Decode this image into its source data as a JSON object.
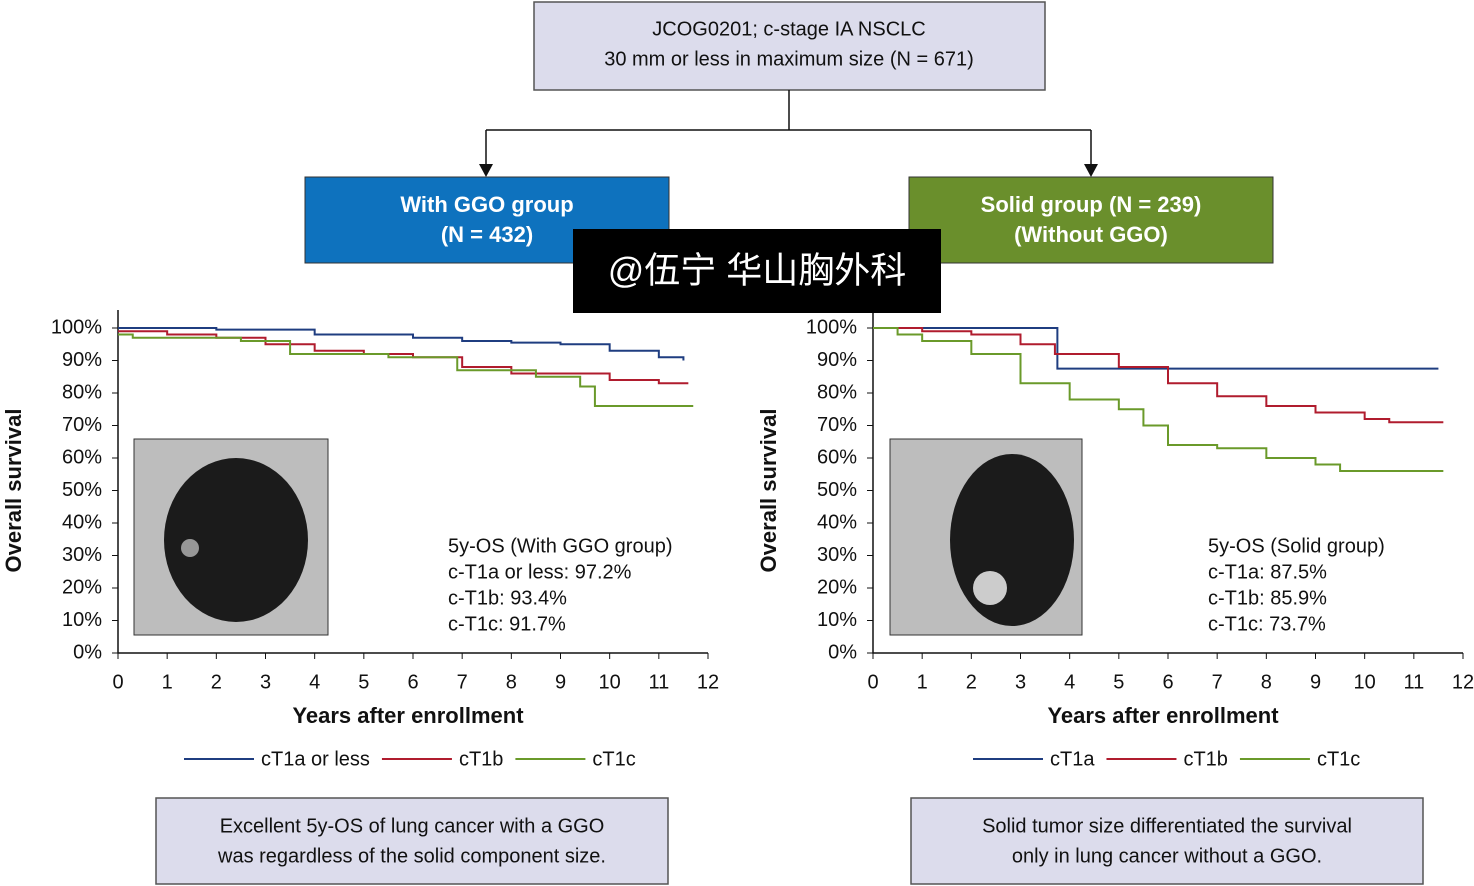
{
  "flow": {
    "top": [
      "JCOG0201; c-stage IA NSCLC",
      "30 mm or less in maximum size (N = 671)"
    ],
    "left_group": [
      "With GGO group",
      "(N = 432)"
    ],
    "right_group": [
      "Solid group (N = 239)",
      "(Without GGO)"
    ],
    "left_note": [
      "Excellent 5y-OS of lung cancer with a GGO",
      "was regardless of the solid component size."
    ],
    "right_note": [
      "Solid tumor size differentiated the survival",
      "only in lung cancer without a GGO."
    ],
    "watermark": "@伍宁 华山胸外科"
  },
  "chart_data": [
    {
      "type": "line",
      "step": true,
      "xlabel": "Years after enrollment",
      "ylabel": "Overall survival",
      "xlim": [
        0,
        12
      ],
      "xticks": [
        0,
        1,
        2,
        3,
        4,
        5,
        6,
        7,
        8,
        9,
        10,
        11,
        12
      ],
      "ylim": [
        0,
        100
      ],
      "yticks": [
        {
          "value": 0,
          "label": "0%"
        },
        {
          "value": 10,
          "label": "10%"
        },
        {
          "value": 20,
          "label": "20%"
        },
        {
          "value": 30,
          "label": "30%"
        },
        {
          "value": 40,
          "label": "40%"
        },
        {
          "value": 50,
          "label": "50%"
        },
        {
          "value": 60,
          "label": "60%"
        },
        {
          "value": 70,
          "label": "70%"
        },
        {
          "value": 80,
          "label": "80%"
        },
        {
          "value": 90,
          "label": "90%"
        },
        {
          "value": 100,
          "label": "100%"
        }
      ],
      "annotations": [
        "5y-OS (With GGO group)",
        "c-T1a or less: 97.2%",
        "c-T1b: 93.4%",
        "c-T1c: 91.7%"
      ],
      "series": [
        {
          "name": "cT1a or less",
          "color": "#1f3d80",
          "x": [
            0,
            2,
            4,
            6,
            7,
            8,
            9,
            10,
            11,
            11.5
          ],
          "values": [
            100,
            99.5,
            98,
            97,
            96,
            95.5,
            95,
            93,
            91,
            90
          ]
        },
        {
          "name": "cT1b",
          "color": "#b01c2e",
          "x": [
            0,
            1,
            2,
            3,
            4,
            5,
            6,
            7,
            8,
            9,
            10,
            11,
            11.6
          ],
          "values": [
            99,
            98,
            97,
            95,
            93,
            92,
            91,
            88,
            86,
            86,
            84,
            83,
            83
          ]
        },
        {
          "name": "cT1c",
          "color": "#6a9a2a",
          "x": [
            0,
            0.3,
            2.5,
            3.5,
            5.5,
            6.9,
            8.5,
            9.4,
            9.7,
            11.7
          ],
          "values": [
            98,
            97,
            96,
            92,
            91,
            87,
            85,
            82,
            76,
            76
          ]
        }
      ]
    },
    {
      "type": "line",
      "step": true,
      "xlabel": "Years after enrollment",
      "ylabel": "Overall survival",
      "xlim": [
        0,
        12
      ],
      "xticks": [
        0,
        1,
        2,
        3,
        4,
        5,
        6,
        7,
        8,
        9,
        10,
        11,
        12
      ],
      "ylim": [
        0,
        100
      ],
      "yticks": [
        {
          "value": 0,
          "label": "0%"
        },
        {
          "value": 10,
          "label": "10%"
        },
        {
          "value": 20,
          "label": "20%"
        },
        {
          "value": 30,
          "label": "30%"
        },
        {
          "value": 40,
          "label": "40%"
        },
        {
          "value": 50,
          "label": "50%"
        },
        {
          "value": 60,
          "label": "60%"
        },
        {
          "value": 70,
          "label": "70%"
        },
        {
          "value": 80,
          "label": "80%"
        },
        {
          "value": 90,
          "label": "90%"
        },
        {
          "value": 100,
          "label": "100%"
        }
      ],
      "annotations": [
        "5y-OS (Solid group)",
        "c-T1a: 87.5%",
        "c-T1b: 85.9%",
        "c-T1c: 73.7%"
      ],
      "series": [
        {
          "name": "cT1a",
          "color": "#1f3d80",
          "x": [
            0,
            3.75,
            11.5
          ],
          "values": [
            100,
            87.5,
            87.5
          ]
        },
        {
          "name": "cT1b",
          "color": "#b01c2e",
          "x": [
            0,
            1,
            2,
            3,
            3.7,
            5,
            6,
            7,
            8,
            9,
            10,
            10.5,
            11.6
          ],
          "values": [
            100,
            99,
            98,
            95,
            92,
            88,
            83,
            79,
            76,
            74,
            72,
            71,
            71
          ]
        },
        {
          "name": "cT1c",
          "color": "#6a9a2a",
          "x": [
            0,
            0.5,
            1,
            2,
            3,
            4,
            5,
            5.5,
            6,
            7,
            8,
            9,
            9.5,
            11.6
          ],
          "values": [
            100,
            98,
            96,
            92,
            83,
            78,
            75,
            70,
            64,
            63,
            60,
            58,
            56,
            56
          ]
        }
      ]
    }
  ]
}
